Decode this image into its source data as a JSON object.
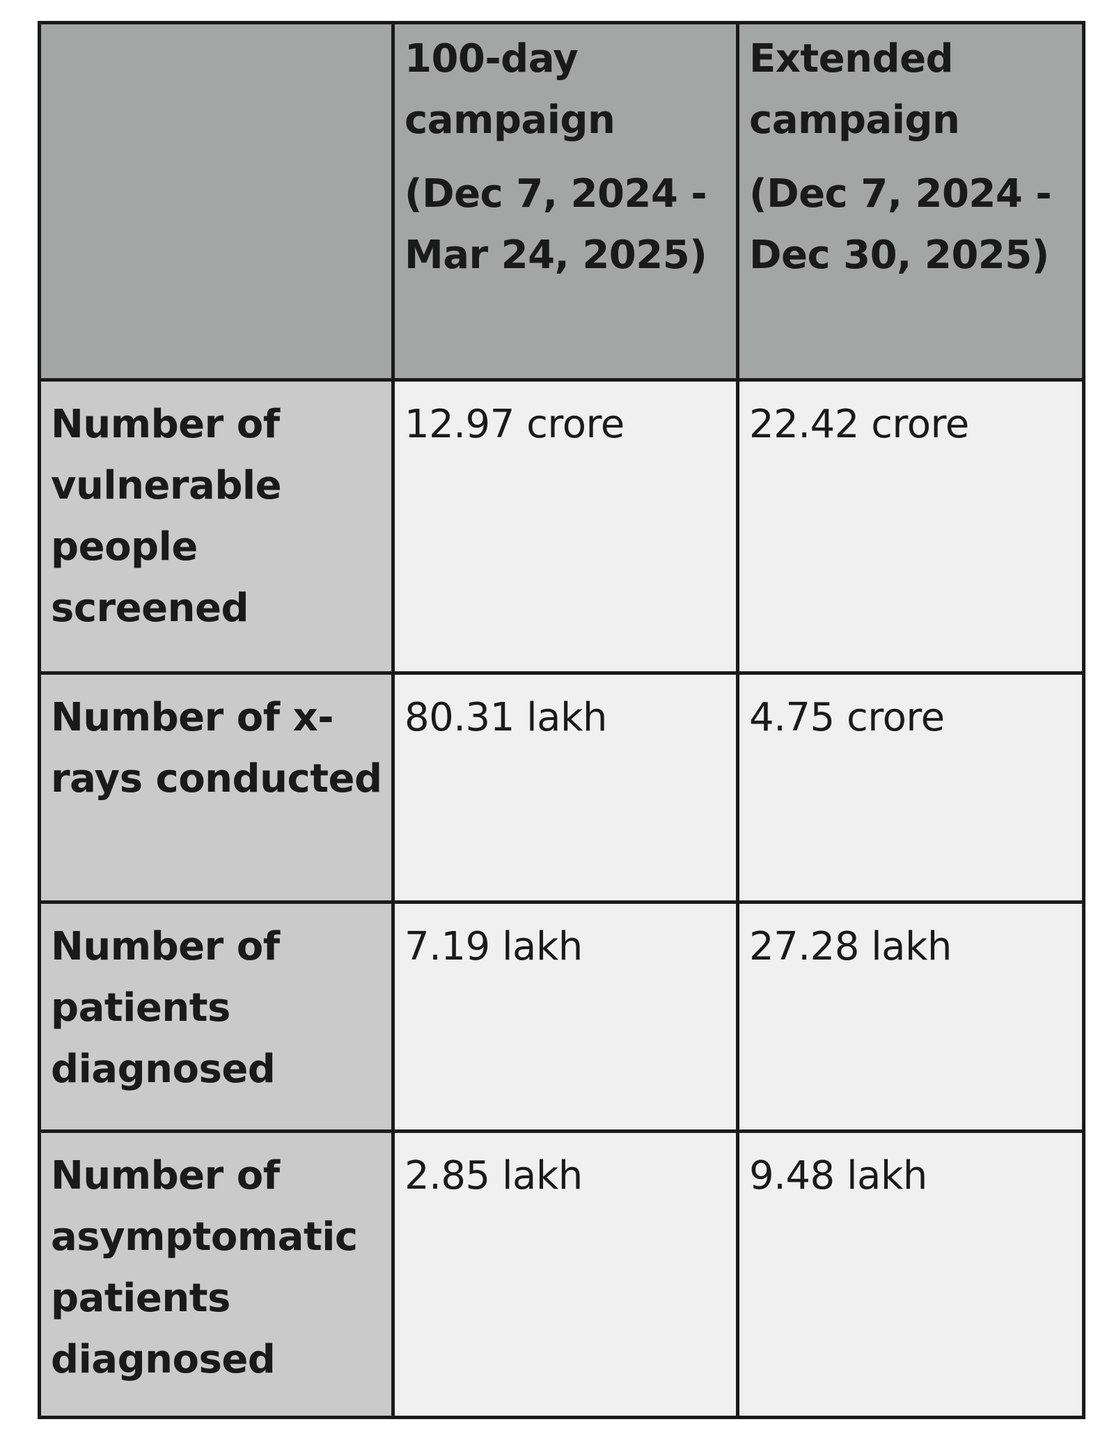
{
  "table": {
    "corner_label": "",
    "columns": [
      {
        "title": "100-day campaign",
        "dates": "(Dec 7, 2024 - Mar 24, 2025)"
      },
      {
        "title": "Extended campaign",
        "dates": "(Dec 7, 2024 - Dec 30, 2025)"
      }
    ],
    "rows": [
      {
        "label": "Number of vulnerable people screened",
        "values": [
          "12.97 crore",
          "22.42 crore"
        ]
      },
      {
        "label": "Number of x-rays conducted",
        "values": [
          "80.31 lakh",
          "4.75 crore"
        ]
      },
      {
        "label": "Number of patients diagnosed",
        "values": [
          "7.19 lakh",
          "27.28 lakh"
        ]
      },
      {
        "label": "Number of asymptomatic patients diagnosed",
        "values": [
          "2.85 lakh",
          "9.48 lakh"
        ]
      }
    ]
  },
  "colors": {
    "header_bg": "#a4a6a5",
    "row_label_bg": "#cacaca",
    "cell_bg": "#f0f0f0",
    "border": "#1a1a1a"
  }
}
